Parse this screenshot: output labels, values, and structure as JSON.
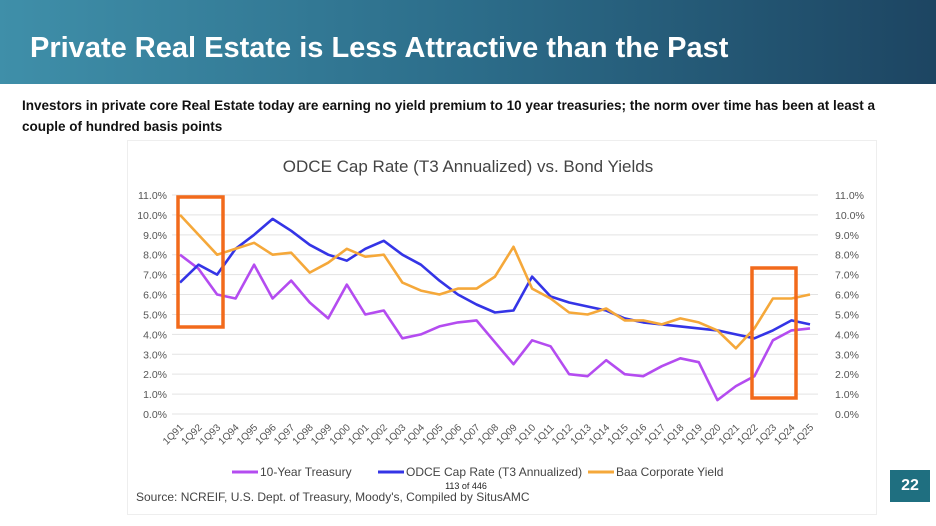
{
  "header": {
    "title": "Private Real Estate is Less Attractive than the Past"
  },
  "subtitle": "Investors in private core Real Estate today are earning no yield premium to 10 year treasuries; the norm over time has been at least a couple of hundred basis points",
  "page_counter": "113 of 446",
  "slide_number": "22",
  "source": "Source:  NCREIF, U.S. Dept. of Treasury, Moody's, Compiled by SitusAMC",
  "chart_data": {
    "type": "line",
    "title": "ODCE Cap Rate (T3 Annualized) vs. Bond Yields",
    "categories": [
      "1Q91",
      "1Q92",
      "1Q93",
      "1Q94",
      "1Q95",
      "1Q96",
      "1Q97",
      "1Q98",
      "1Q99",
      "1Q00",
      "1Q01",
      "1Q02",
      "1Q03",
      "1Q04",
      "1Q05",
      "1Q06",
      "1Q07",
      "1Q08",
      "1Q09",
      "1Q10",
      "1Q11",
      "1Q12",
      "1Q13",
      "1Q14",
      "1Q15",
      "1Q16",
      "1Q17",
      "1Q18",
      "1Q19",
      "1Q20",
      "1Q21",
      "1Q22",
      "1Q23",
      "1Q24",
      "1Q25"
    ],
    "yticks": [
      "0.0%",
      "1.0%",
      "2.0%",
      "3.0%",
      "4.0%",
      "5.0%",
      "6.0%",
      "7.0%",
      "8.0%",
      "9.0%",
      "10.0%",
      "11.0%"
    ],
    "ylim": [
      0,
      11
    ],
    "series": [
      {
        "name": "10-Year Treasury",
        "color": "#b44cf0",
        "values": [
          8.0,
          7.3,
          6.0,
          5.8,
          7.5,
          5.8,
          6.7,
          5.6,
          4.8,
          6.5,
          5.0,
          5.2,
          3.8,
          4.0,
          4.4,
          4.6,
          4.7,
          3.6,
          2.5,
          3.7,
          3.4,
          2.0,
          1.9,
          2.7,
          2.0,
          1.9,
          2.4,
          2.8,
          2.6,
          0.7,
          1.4,
          1.9,
          3.7,
          4.2,
          4.3
        ]
      },
      {
        "name": "ODCE Cap Rate (T3 Annualized)",
        "color": "#3434e6",
        "values": [
          6.6,
          7.5,
          7.0,
          8.3,
          9.0,
          9.8,
          9.2,
          8.5,
          8.0,
          7.7,
          8.3,
          8.7,
          8.0,
          7.5,
          6.7,
          6.0,
          5.5,
          5.1,
          5.2,
          6.9,
          5.9,
          5.6,
          5.4,
          5.2,
          4.8,
          4.6,
          4.5,
          4.4,
          4.3,
          4.2,
          4.0,
          3.8,
          4.2,
          4.7,
          4.5
        ]
      },
      {
        "name": "Baa Corporate Yield",
        "color": "#f5a83a",
        "values": [
          10.0,
          9.0,
          8.0,
          8.3,
          8.6,
          8.0,
          8.1,
          7.1,
          7.6,
          8.3,
          7.9,
          8.0,
          6.6,
          6.2,
          6.0,
          6.3,
          6.3,
          6.9,
          8.4,
          6.3,
          5.8,
          5.1,
          5.0,
          5.3,
          4.7,
          4.7,
          4.5,
          4.8,
          4.6,
          4.2,
          3.3,
          4.3,
          5.8,
          5.8,
          6.0
        ]
      }
    ],
    "legend": "bottom"
  }
}
